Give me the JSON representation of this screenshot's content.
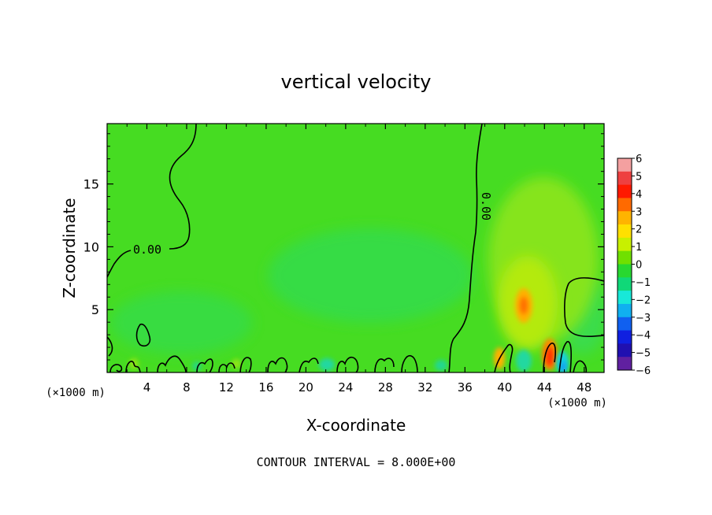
{
  "chart_data": {
    "type": "heatmap",
    "title": "vertical velocity",
    "xlabel": "X-coordinate",
    "ylabel": "Z-coordinate",
    "x_unit": "(×1000 m)",
    "x_unit_right": "(×1000 m)",
    "footer": "CONTOUR INTERVAL = 8.000E+00",
    "xlim": [
      0,
      50
    ],
    "ylim": [
      0,
      19.8
    ],
    "xticks": [
      4,
      8,
      12,
      16,
      20,
      24,
      28,
      32,
      36,
      40,
      44,
      48
    ],
    "yticks": [
      5,
      10,
      15
    ],
    "contour_labels": [
      "0.00",
      "0.00"
    ],
    "colorbar": {
      "ticks": [
        "6",
        "5",
        "4",
        "3",
        "2",
        "1",
        "0",
        "−1",
        "−2",
        "−3",
        "−4",
        "−5",
        "−6"
      ],
      "colors": [
        "#f4a0a0",
        "#ee4040",
        "#ff1a00",
        "#ff6a00",
        "#ffb400",
        "#ffe000",
        "#c8f000",
        "#70e000",
        "#28d830",
        "#10d878",
        "#18e8d8",
        "#10b0f0",
        "#1060f0",
        "#1020e0",
        "#2010b0",
        "#6020a0"
      ]
    },
    "features": [
      {
        "kind": "updraft",
        "x": 41.8,
        "z": 5.2,
        "value": 4
      },
      {
        "kind": "updraft",
        "x": 44.3,
        "z": 1.4,
        "value": 5
      },
      {
        "kind": "updraft",
        "x": 39.6,
        "z": 1.0,
        "value": 3
      },
      {
        "kind": "downdraft",
        "x": 45.6,
        "z": 0.6,
        "value": -2
      },
      {
        "kind": "downdraft",
        "x": 42.5,
        "z": 1.5,
        "value": -1
      }
    ]
  }
}
